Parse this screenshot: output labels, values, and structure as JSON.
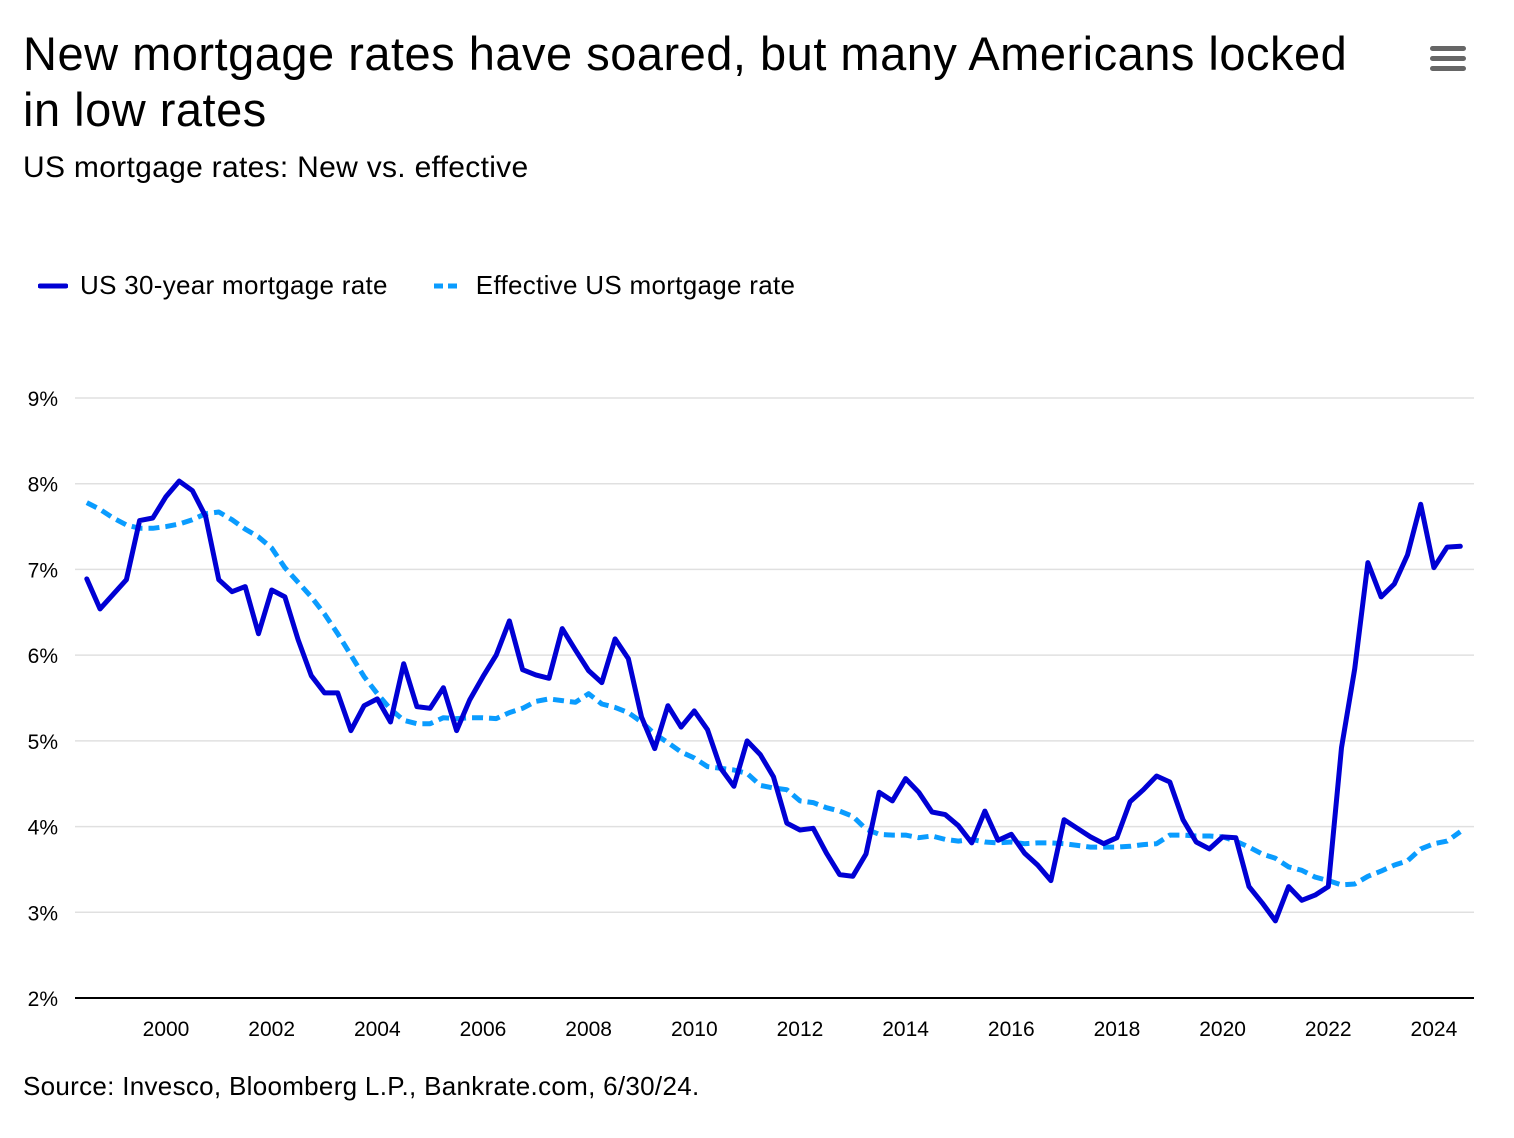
{
  "header": {
    "title": "New mortgage rates have soared, but many Americans locked in low rates",
    "subtitle": "US mortgage rates: New vs. effective",
    "menu_icon": "hamburger-menu-icon"
  },
  "footer": {
    "source": "Source: Invesco, Bloomberg L.P., Bankrate.com, 6/30/24."
  },
  "chart_data": {
    "type": "line",
    "title": "New mortgage rates have soared, but many Americans locked in low rates",
    "subtitle": "US mortgage rates: New vs. effective",
    "xlabel": "",
    "ylabel": "",
    "xlim": [
      1998.25,
      2024.75
    ],
    "ylim": [
      2,
      9
    ],
    "x_ticks": [
      "2000",
      "2002",
      "2004",
      "2006",
      "2008",
      "2010",
      "2012",
      "2014",
      "2016",
      "2018",
      "2020",
      "2022",
      "2024"
    ],
    "y_ticks": [
      "2%",
      "3%",
      "4%",
      "5%",
      "6%",
      "7%",
      "8%",
      "9%"
    ],
    "grid": true,
    "legend_position": "top-left",
    "series": [
      {
        "name": "US 30-year mortgage rate",
        "color": "#0000d4",
        "style": "solid",
        "points": [
          [
            1998.5,
            6.89
          ],
          [
            1998.75,
            6.54
          ],
          [
            1999.0,
            6.71
          ],
          [
            1999.25,
            6.88
          ],
          [
            1999.5,
            7.57
          ],
          [
            1999.75,
            7.6
          ],
          [
            2000.0,
            7.85
          ],
          [
            2000.25,
            8.03
          ],
          [
            2000.5,
            7.92
          ],
          [
            2000.75,
            7.62
          ],
          [
            2001.0,
            6.88
          ],
          [
            2001.25,
            6.74
          ],
          [
            2001.5,
            6.8
          ],
          [
            2001.75,
            6.25
          ],
          [
            2002.0,
            6.76
          ],
          [
            2002.25,
            6.68
          ],
          [
            2002.5,
            6.18
          ],
          [
            2002.75,
            5.76
          ],
          [
            2003.0,
            5.56
          ],
          [
            2003.25,
            5.56
          ],
          [
            2003.5,
            5.12
          ],
          [
            2003.75,
            5.41
          ],
          [
            2004.0,
            5.49
          ],
          [
            2004.25,
            5.22
          ],
          [
            2004.5,
            5.9
          ],
          [
            2004.75,
            5.4
          ],
          [
            2005.0,
            5.38
          ],
          [
            2005.25,
            5.62
          ],
          [
            2005.5,
            5.12
          ],
          [
            2005.75,
            5.48
          ],
          [
            2006.0,
            5.75
          ],
          [
            2006.25,
            6.0
          ],
          [
            2006.5,
            6.4
          ],
          [
            2006.75,
            5.83
          ],
          [
            2007.0,
            5.77
          ],
          [
            2007.25,
            5.73
          ],
          [
            2007.5,
            6.31
          ],
          [
            2007.75,
            6.06
          ],
          [
            2008.0,
            5.82
          ],
          [
            2008.25,
            5.68
          ],
          [
            2008.5,
            6.19
          ],
          [
            2008.75,
            5.96
          ],
          [
            2009.0,
            5.28
          ],
          [
            2009.25,
            4.91
          ],
          [
            2009.5,
            5.41
          ],
          [
            2009.75,
            5.16
          ],
          [
            2010.0,
            5.35
          ],
          [
            2010.25,
            5.13
          ],
          [
            2010.5,
            4.68
          ],
          [
            2010.75,
            4.47
          ],
          [
            2011.0,
            5.0
          ],
          [
            2011.25,
            4.84
          ],
          [
            2011.5,
            4.58
          ],
          [
            2011.75,
            4.04
          ],
          [
            2012.0,
            3.96
          ],
          [
            2012.25,
            3.98
          ],
          [
            2012.5,
            3.69
          ],
          [
            2012.75,
            3.44
          ],
          [
            2013.0,
            3.42
          ],
          [
            2013.25,
            3.68
          ],
          [
            2013.5,
            4.4
          ],
          [
            2013.75,
            4.3
          ],
          [
            2014.0,
            4.56
          ],
          [
            2014.25,
            4.4
          ],
          [
            2014.5,
            4.17
          ],
          [
            2014.75,
            4.14
          ],
          [
            2015.0,
            4.01
          ],
          [
            2015.25,
            3.81
          ],
          [
            2015.5,
            4.18
          ],
          [
            2015.75,
            3.84
          ],
          [
            2016.0,
            3.91
          ],
          [
            2016.25,
            3.69
          ],
          [
            2016.5,
            3.55
          ],
          [
            2016.75,
            3.37
          ],
          [
            2017.0,
            4.08
          ],
          [
            2017.25,
            3.98
          ],
          [
            2017.5,
            3.88
          ],
          [
            2017.75,
            3.8
          ],
          [
            2018.0,
            3.87
          ],
          [
            2018.25,
            4.29
          ],
          [
            2018.5,
            4.43
          ],
          [
            2018.75,
            4.59
          ],
          [
            2019.0,
            4.52
          ],
          [
            2019.25,
            4.08
          ],
          [
            2019.5,
            3.82
          ],
          [
            2019.75,
            3.74
          ],
          [
            2020.0,
            3.88
          ],
          [
            2020.25,
            3.87
          ],
          [
            2020.5,
            3.3
          ],
          [
            2020.75,
            3.11
          ],
          [
            2021.0,
            2.9
          ],
          [
            2021.25,
            3.3
          ],
          [
            2021.5,
            3.14
          ],
          [
            2021.75,
            3.2
          ],
          [
            2022.0,
            3.3
          ],
          [
            2022.25,
            4.92
          ],
          [
            2022.5,
            5.84
          ],
          [
            2022.75,
            7.08
          ],
          [
            2023.0,
            6.68
          ],
          [
            2023.25,
            6.83
          ],
          [
            2023.5,
            7.17
          ],
          [
            2023.75,
            7.76
          ],
          [
            2024.0,
            7.02
          ],
          [
            2024.25,
            7.26
          ],
          [
            2024.5,
            7.27
          ]
        ]
      },
      {
        "name": "Effective US mortgage rate",
        "color": "#0a9cff",
        "style": "dashed",
        "points": [
          [
            1998.5,
            7.78
          ],
          [
            1998.75,
            7.7
          ],
          [
            1999.0,
            7.6
          ],
          [
            1999.25,
            7.52
          ],
          [
            1999.5,
            7.48
          ],
          [
            1999.75,
            7.48
          ],
          [
            2000.0,
            7.5
          ],
          [
            2000.25,
            7.53
          ],
          [
            2000.5,
            7.58
          ],
          [
            2000.75,
            7.65
          ],
          [
            2001.0,
            7.67
          ],
          [
            2001.25,
            7.58
          ],
          [
            2001.5,
            7.47
          ],
          [
            2001.75,
            7.38
          ],
          [
            2002.0,
            7.25
          ],
          [
            2002.25,
            7.02
          ],
          [
            2002.5,
            6.85
          ],
          [
            2002.75,
            6.68
          ],
          [
            2003.0,
            6.48
          ],
          [
            2003.25,
            6.25
          ],
          [
            2003.5,
            6.0
          ],
          [
            2003.75,
            5.75
          ],
          [
            2004.0,
            5.55
          ],
          [
            2004.25,
            5.37
          ],
          [
            2004.5,
            5.24
          ],
          [
            2004.75,
            5.2
          ],
          [
            2005.0,
            5.2
          ],
          [
            2005.25,
            5.27
          ],
          [
            2005.5,
            5.26
          ],
          [
            2005.75,
            5.27
          ],
          [
            2006.0,
            5.27
          ],
          [
            2006.25,
            5.26
          ],
          [
            2006.5,
            5.33
          ],
          [
            2006.75,
            5.38
          ],
          [
            2007.0,
            5.46
          ],
          [
            2007.25,
            5.49
          ],
          [
            2007.5,
            5.47
          ],
          [
            2007.75,
            5.45
          ],
          [
            2008.0,
            5.55
          ],
          [
            2008.25,
            5.43
          ],
          [
            2008.5,
            5.39
          ],
          [
            2008.75,
            5.33
          ],
          [
            2009.0,
            5.22
          ],
          [
            2009.25,
            5.08
          ],
          [
            2009.5,
            4.98
          ],
          [
            2009.75,
            4.87
          ],
          [
            2010.0,
            4.8
          ],
          [
            2010.25,
            4.7
          ],
          [
            2010.5,
            4.68
          ],
          [
            2010.75,
            4.66
          ],
          [
            2011.0,
            4.62
          ],
          [
            2011.25,
            4.48
          ],
          [
            2011.5,
            4.45
          ],
          [
            2011.75,
            4.43
          ],
          [
            2012.0,
            4.3
          ],
          [
            2012.25,
            4.28
          ],
          [
            2012.5,
            4.22
          ],
          [
            2012.75,
            4.18
          ],
          [
            2013.0,
            4.12
          ],
          [
            2013.25,
            3.97
          ],
          [
            2013.5,
            3.91
          ],
          [
            2013.75,
            3.9
          ],
          [
            2014.0,
            3.9
          ],
          [
            2014.25,
            3.87
          ],
          [
            2014.5,
            3.89
          ],
          [
            2014.75,
            3.85
          ],
          [
            2015.0,
            3.83
          ],
          [
            2015.25,
            3.85
          ],
          [
            2015.5,
            3.82
          ],
          [
            2015.75,
            3.81
          ],
          [
            2016.0,
            3.82
          ],
          [
            2016.25,
            3.8
          ],
          [
            2016.5,
            3.81
          ],
          [
            2016.75,
            3.81
          ],
          [
            2017.0,
            3.8
          ],
          [
            2017.25,
            3.78
          ],
          [
            2017.5,
            3.76
          ],
          [
            2017.75,
            3.76
          ],
          [
            2018.0,
            3.76
          ],
          [
            2018.25,
            3.77
          ],
          [
            2018.5,
            3.79
          ],
          [
            2018.75,
            3.8
          ],
          [
            2019.0,
            3.9
          ],
          [
            2019.25,
            3.9
          ],
          [
            2019.5,
            3.89
          ],
          [
            2019.75,
            3.89
          ],
          [
            2020.0,
            3.88
          ],
          [
            2020.25,
            3.83
          ],
          [
            2020.5,
            3.76
          ],
          [
            2020.75,
            3.68
          ],
          [
            2021.0,
            3.63
          ],
          [
            2021.25,
            3.53
          ],
          [
            2021.5,
            3.49
          ],
          [
            2021.75,
            3.41
          ],
          [
            2022.0,
            3.37
          ],
          [
            2022.25,
            3.32
          ],
          [
            2022.5,
            3.33
          ],
          [
            2022.75,
            3.42
          ],
          [
            2023.0,
            3.48
          ],
          [
            2023.25,
            3.55
          ],
          [
            2023.5,
            3.6
          ],
          [
            2023.75,
            3.74
          ],
          [
            2024.0,
            3.8
          ],
          [
            2024.25,
            3.83
          ],
          [
            2024.5,
            3.94
          ]
        ]
      }
    ]
  }
}
